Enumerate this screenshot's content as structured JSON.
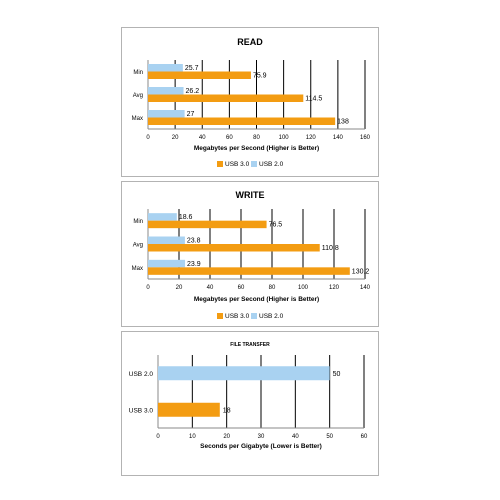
{
  "colors": {
    "usb3": "#f39c12",
    "usb2": "#a9d2f1",
    "grid": "#000000",
    "axis": "#888888"
  },
  "chart_data": [
    {
      "type": "bar",
      "title": "READ",
      "categories": [
        "Min",
        "Avg",
        "Max"
      ],
      "series": [
        {
          "name": "USB 2.0",
          "values": [
            25.7,
            26.2,
            27
          ]
        },
        {
          "name": "USB 3.0",
          "values": [
            75.9,
            114.5,
            138
          ]
        }
      ],
      "xlabel": "Megabytes per Second (Higher is Better)",
      "ylabel": "",
      "xlim": [
        0,
        160
      ],
      "ticks": [
        "0",
        "20",
        "40",
        "60",
        "80",
        "100",
        "120",
        "140",
        "160"
      ],
      "value_labels": [
        [
          "25.7",
          "26.2",
          "27"
        ],
        [
          "75.9",
          "114.5",
          "138"
        ]
      ],
      "grid": true,
      "orientation": "horizontal",
      "legend": {
        "placement": "bottom",
        "items": [
          "USB 3.0",
          "USB 2.0"
        ]
      }
    },
    {
      "type": "bar",
      "title": "WRITE",
      "categories": [
        "Min",
        "Avg",
        "Max"
      ],
      "series": [
        {
          "name": "USB 2.0",
          "values": [
            18.6,
            23.8,
            23.9
          ]
        },
        {
          "name": "USB 3.0",
          "values": [
            76.5,
            110.8,
            130.2
          ]
        }
      ],
      "xlabel": "Megabytes per Second (Higher is Better)",
      "ylabel": "",
      "xlim": [
        0,
        140
      ],
      "ticks": [
        "0",
        "20",
        "40",
        "60",
        "80",
        "100",
        "120",
        "140"
      ],
      "value_labels": [
        [
          "18.6",
          "23.8",
          "23.9"
        ],
        [
          "76.5",
          "110.8",
          "130.2"
        ]
      ],
      "grid": true,
      "orientation": "horizontal",
      "legend": {
        "placement": "bottom",
        "items": [
          "USB 3.0",
          "USB 2.0"
        ]
      }
    },
    {
      "type": "bar",
      "title": "FILE TRANSFER",
      "categories": [
        "USB 2.0",
        "USB 3.0"
      ],
      "values": [
        50,
        18
      ],
      "xlabel": "Seconds per Gigabyte  (Lower is Better)",
      "ylabel": "",
      "xlim": [
        0,
        60
      ],
      "ticks": [
        "0",
        "10",
        "20",
        "30",
        "40",
        "50",
        "60"
      ],
      "value_labels": [
        "50",
        "18"
      ],
      "grid": true,
      "orientation": "horizontal",
      "legend": null
    }
  ]
}
